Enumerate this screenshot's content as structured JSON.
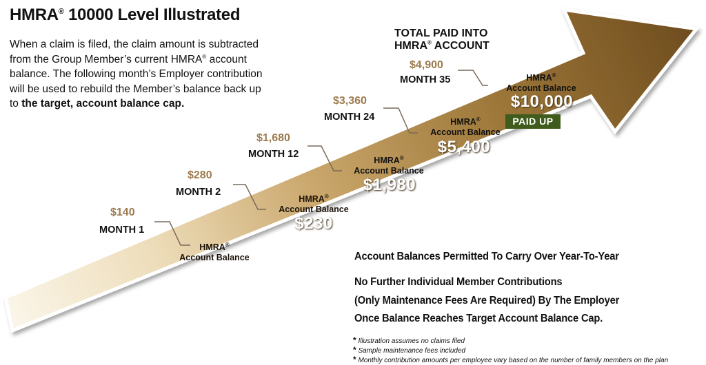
{
  "title": {
    "brand": "HMRA",
    "reg": "®",
    "rest": " 10000 Level Illustrated"
  },
  "description": {
    "part1": "When a claim is filed, the claim amount is subtracted from the Group Member’s current HMRA",
    "reg": "®",
    "part2": " account balance. The following month’s Employer contribution will be used to rebuild the Member’s balance back up to ",
    "bold": "the target, account balance cap."
  },
  "total_heading": {
    "line1": "TOTAL PAID INTO",
    "line2_a": "HMRA",
    "reg": "®",
    "line2_b": " ACCOUNT"
  },
  "steps": [
    {
      "amount": "$140",
      "month": "MONTH 1",
      "hmra_label": "HMRA",
      "reg": "®",
      "account_label": "Account Balance",
      "balance": ""
    },
    {
      "amount": "$280",
      "month": "MONTH 2",
      "hmra_label": "HMRA",
      "reg": "®",
      "account_label": "Account Balance",
      "balance": "$230"
    },
    {
      "amount": "$1,680",
      "month": "MONTH 12",
      "hmra_label": "HMRA",
      "reg": "®",
      "account_label": "Account Balance",
      "balance": "$1,980"
    },
    {
      "amount": "$3,360",
      "month": "MONTH 24",
      "hmra_label": "HMRA",
      "reg": "®",
      "account_label": "Account Balance",
      "balance": "$5,400"
    },
    {
      "amount": "$4,900",
      "month": "MONTH 35",
      "hmra_label": "HMRA",
      "reg": "®",
      "account_label": "Account Balance",
      "balance": "$10,000"
    }
  ],
  "paid_up": "PAID UP",
  "notes": [
    "Account Balances Permitted To Carry Over Year-To-Year",
    "No Further Individual Member Contributions",
    "(Only Maintenance Fees Are Required) By The Employer",
    "Once Balance Reaches Target Account Balance Cap."
  ],
  "footnotes": [
    {
      "marker": "*",
      "text": "Illustration assumes no claims filed"
    },
    {
      "marker": "*",
      "text": "Sample maintenance fees included"
    },
    {
      "marker": "*",
      "text": "Monthly contribution amounts per employee vary based on the number of family members on the plan"
    }
  ],
  "colors": {
    "arrow_light": "#f5ecd8",
    "arrow_mid": "#c9a66b",
    "arrow_dark": "#7a5724",
    "amount_text": "#9c7a4e",
    "paid_up_bg": "#3f5c1c"
  }
}
